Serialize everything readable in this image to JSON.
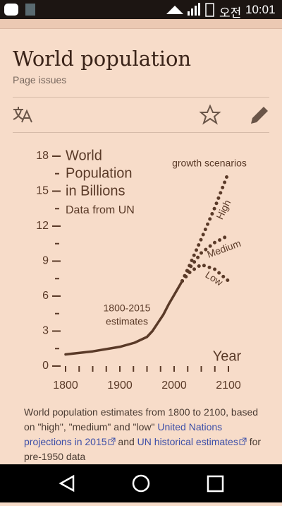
{
  "status_bar": {
    "ampm": "오전",
    "time": "10:01"
  },
  "article": {
    "title": "World population",
    "page_issues": "Page issues"
  },
  "chart_data": {
    "type": "line",
    "title_lines": [
      "World",
      "Population",
      "in Billions"
    ],
    "subtitle": "Data from UN",
    "annotation": "growth scenarios",
    "estimates_label": [
      "1800-2015",
      "estimates"
    ],
    "xlabel": "Year",
    "color": "#5a3a28",
    "xlim": [
      1800,
      2100
    ],
    "ylim": [
      0,
      18
    ],
    "xticks": [
      1800,
      1900,
      2000,
      2100
    ],
    "xminor_ticks": [
      1825,
      1850,
      1875,
      1925,
      1950,
      1975,
      2025,
      2050,
      2075
    ],
    "yticks": [
      0,
      3,
      6,
      9,
      12,
      15,
      18
    ],
    "yminor_ticks": [
      1.5,
      4.5,
      7.5,
      10.5,
      13.5,
      16.5
    ],
    "series": [
      {
        "style": "solid",
        "x": [
          1800,
          1850,
          1900,
          1927,
          1950,
          1960,
          1970,
          1980,
          1990,
          2000,
          2015
        ],
        "values": [
          1,
          1.26,
          1.65,
          2,
          2.5,
          3,
          3.7,
          4.4,
          5.3,
          6.1,
          7.3
        ]
      },
      {
        "name": "High",
        "style": "dotted",
        "x": [
          2015,
          2030,
          2050,
          2075,
          2100
        ],
        "values": [
          7.3,
          8.8,
          10.9,
          13.6,
          16.6
        ]
      },
      {
        "name": "Medium",
        "style": "dotted",
        "x": [
          2015,
          2030,
          2050,
          2075,
          2100
        ],
        "values": [
          7.3,
          8.5,
          9.7,
          10.6,
          11.2
        ]
      },
      {
        "name": "Low",
        "style": "dotted",
        "x": [
          2015,
          2030,
          2050,
          2075,
          2100
        ],
        "values": [
          7.3,
          8.1,
          8.7,
          8.3,
          7.3
        ]
      }
    ]
  },
  "caption": {
    "text1": "World population estimates from 1800 to 2100, based on \"high\", \"medium\" and \"low\"",
    "link1": "United Nations projections in 2015",
    "text2": "and",
    "link2": "UN historical estimates",
    "text3": "for pre-1950 data"
  }
}
